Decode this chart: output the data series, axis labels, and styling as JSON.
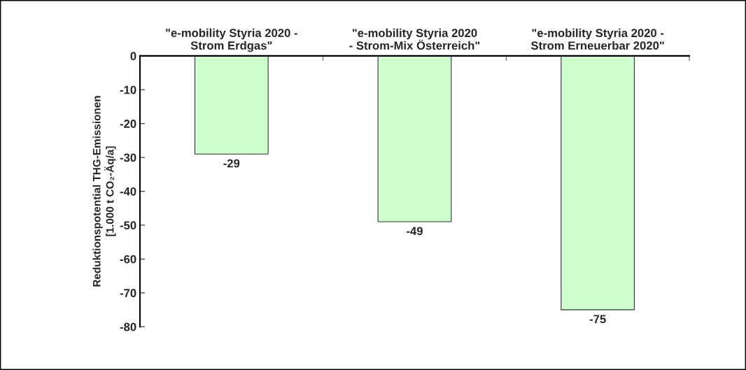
{
  "chart_data": {
    "type": "bar",
    "categories": [
      "\"e-mobility Styria 2020 -\nStrom Erdgas\"",
      "\"e-mobility Styria 2020\n- Strom-Mix Österreich\"",
      "\"e-mobility Styria 2020 -\nStrom Erneuerbar 2020\""
    ],
    "values": [
      -29,
      -49,
      -75
    ],
    "color": "#ccffcc",
    "ylabel": "Reduktionspotential THG-Emissionen\n[1.000 t CO₂-Äq/a]",
    "ylim": [
      -80,
      0
    ],
    "yticks": [
      0,
      -10,
      -20,
      -30,
      -40,
      -50,
      -60,
      -70,
      -80
    ],
    "data_labels": true,
    "grid": false,
    "legend": false
  }
}
